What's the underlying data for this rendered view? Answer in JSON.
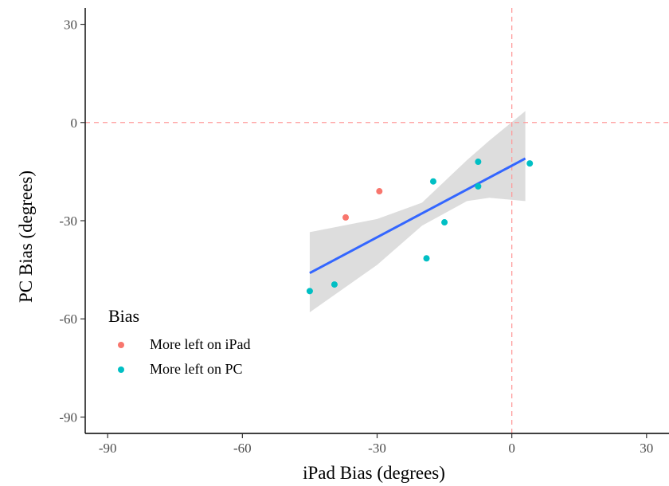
{
  "chart_data": {
    "type": "scatter",
    "title": "",
    "xlabel": "iPad Bias (degrees)",
    "ylabel": "PC Bias (degrees)",
    "xlim": [
      -95,
      35
    ],
    "ylim": [
      -95,
      35
    ],
    "x_ticks": [
      -90,
      -60,
      -30,
      0,
      30
    ],
    "y_ticks": [
      30,
      0,
      -30,
      -60,
      -90
    ],
    "reference_lines": {
      "x": 0,
      "y": 0,
      "color": "#ff9999",
      "style": "dashed"
    },
    "legend": {
      "title": "Bias",
      "placement": "bottom-left inside plot",
      "entries": [
        "More left on iPad",
        "More left on PC"
      ]
    },
    "series": [
      {
        "name": "More left on iPad",
        "color": "#f8766d",
        "points": [
          [
            -37,
            -29
          ],
          [
            -29.5,
            -21
          ]
        ]
      },
      {
        "name": "More left on PC",
        "color": "#00bfc4",
        "points": [
          [
            -45,
            -51.5
          ],
          [
            -39.5,
            -49.5
          ],
          [
            -19,
            -41.5
          ],
          [
            -15,
            -30.5
          ],
          [
            -17.5,
            -18
          ],
          [
            -7.5,
            -12
          ],
          [
            -7.5,
            -19.5
          ],
          [
            4,
            -12.5
          ]
        ]
      }
    ],
    "fit": {
      "type": "linear",
      "color": "#3366ff",
      "band_color": "#d9d9d9",
      "x_range": [
        -45,
        3
      ],
      "y_start": -46,
      "y_end": -11,
      "band": [
        [
          -45,
          -58,
          -33.5
        ],
        [
          -30,
          -43.5,
          -29.5
        ],
        [
          -20,
          -31.5,
          -24.5
        ],
        [
          -10,
          -24,
          -11.5
        ],
        [
          -5,
          -23,
          -5.5
        ],
        [
          3,
          -24,
          3.5
        ]
      ]
    }
  }
}
